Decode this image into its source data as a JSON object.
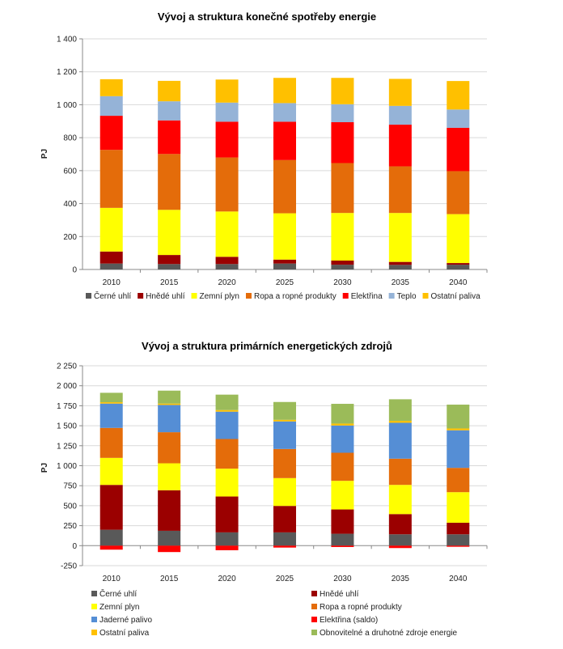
{
  "chart_data": [
    {
      "type": "bar",
      "stacked": true,
      "title": "Vývoj a struktura konečné spotřeby energie",
      "ylabel": "PJ",
      "xlabel": "",
      "ylim": [
        0,
        1400
      ],
      "yticks": [
        0,
        200,
        400,
        600,
        800,
        1000,
        1200,
        1400
      ],
      "ytick_labels": [
        "0",
        "200",
        "400",
        "600",
        "800",
        "1 000",
        "1 200",
        "1 400"
      ],
      "grid": true,
      "legend": "bottom",
      "categories": [
        "2010",
        "2015",
        "2020",
        "2025",
        "2030",
        "2035",
        "2040"
      ],
      "series": [
        {
          "name": "Černé uhlí",
          "color": "#595959",
          "values": [
            36,
            33,
            33,
            36,
            29,
            28,
            29
          ]
        },
        {
          "name": "Hnědé uhlí",
          "color": "#9b0000",
          "values": [
            73,
            55,
            44,
            24,
            25,
            18,
            10
          ]
        },
        {
          "name": "Zemní plyn",
          "color": "#ffff00",
          "values": [
            265,
            274,
            275,
            281,
            289,
            297,
            297
          ]
        },
        {
          "name": "Ropa a ropné produkty",
          "color": "#e46c0a",
          "values": [
            352,
            339,
            328,
            323,
            303,
            283,
            261
          ]
        },
        {
          "name": "Elektřina",
          "color": "#ff0000",
          "values": [
            207,
            204,
            217,
            233,
            248,
            253,
            263
          ]
        },
        {
          "name": "Teplo",
          "color": "#95b3d7",
          "values": [
            119,
            116,
            116,
            113,
            109,
            114,
            111
          ]
        },
        {
          "name": "Ostatní paliva",
          "color": "#ffc000",
          "values": [
            103,
            124,
            140,
            153,
            160,
            164,
            173
          ]
        }
      ]
    },
    {
      "type": "bar",
      "stacked": true,
      "title": "Vývoj a struktura primárních energetických zdrojů",
      "ylabel": "PJ",
      "xlabel": "",
      "ylim": [
        -250,
        2250
      ],
      "yticks": [
        -250,
        0,
        250,
        500,
        750,
        1000,
        1250,
        1500,
        1750,
        2000,
        2250
      ],
      "ytick_labels": [
        "-250",
        "0",
        "250",
        "500",
        "750",
        "1 000",
        "1 250",
        "1 500",
        "1 750",
        "2 000",
        "2 250"
      ],
      "grid": true,
      "legend": "bottom",
      "categories": [
        "2010",
        "2015",
        "2020",
        "2025",
        "2030",
        "2035",
        "2040"
      ],
      "series": [
        {
          "name": "Černé uhlí",
          "color": "#595959",
          "values": [
            199,
            186,
            166,
            166,
            149,
            142,
            142
          ]
        },
        {
          "name": "Hnědé uhlí",
          "color": "#9b0000",
          "values": [
            561,
            507,
            449,
            331,
            304,
            253,
            145
          ]
        },
        {
          "name": "Zemní plyn",
          "color": "#ffff00",
          "values": [
            338,
            337,
            348,
            348,
            358,
            365,
            382
          ]
        },
        {
          "name": "Ropa a ropné produkty",
          "color": "#e46c0a",
          "values": [
            375,
            389,
            371,
            364,
            351,
            328,
            304
          ]
        },
        {
          "name": "Jaderné palivo",
          "color": "#558ed5",
          "values": [
            304,
            341,
            342,
            345,
            341,
            449,
            470
          ]
        },
        {
          "name": "Elektřina (saldo)",
          "color": "#ff0000",
          "values": [
            -50,
            -80,
            -57,
            -24,
            -17,
            -30,
            -14
          ]
        },
        {
          "name": "Ostatní paliva",
          "color": "#ffc000",
          "values": [
            17,
            17,
            20,
            20,
            24,
            24,
            23
          ]
        },
        {
          "name": "Obnovitelné a druhotné zdroje energie",
          "color": "#9bbb59",
          "values": [
            118,
            162,
            193,
            223,
            247,
            270,
            298
          ]
        }
      ]
    }
  ]
}
